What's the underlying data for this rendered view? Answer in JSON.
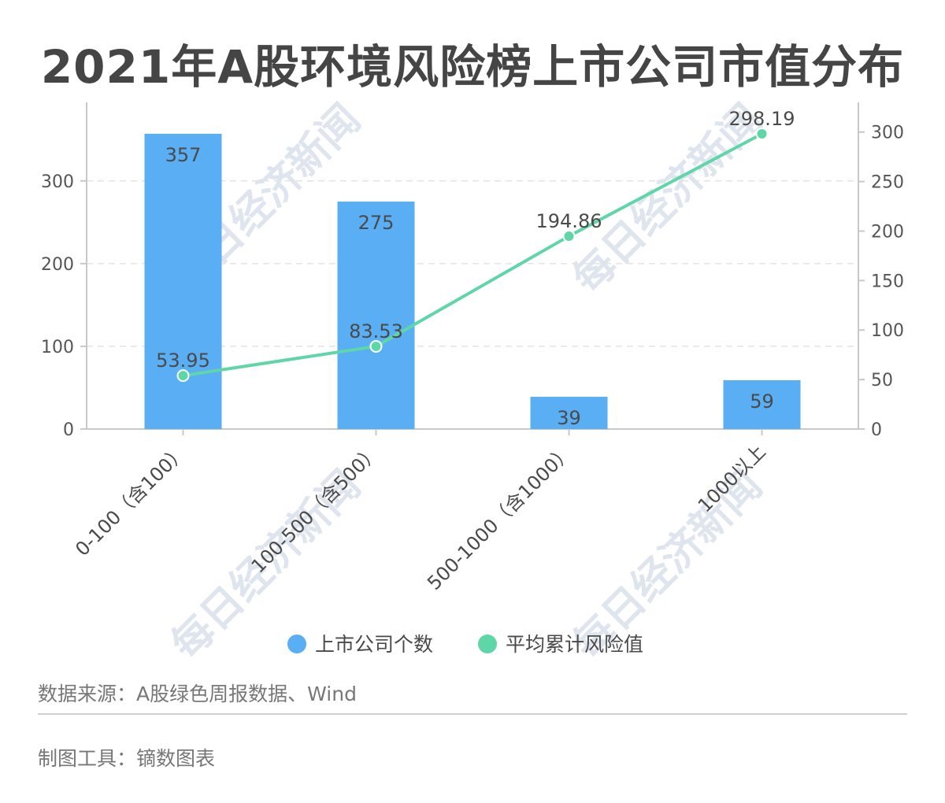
{
  "chart_data": {
    "type": "bar",
    "title": "2021年A股环境风险榜上市公司市值分布",
    "categories": [
      "0-100（含100）",
      "100-500（含500）",
      "500-1000（含1000）",
      "1000以上"
    ],
    "series": [
      {
        "name": "上市公司个数",
        "type": "bar",
        "axis": "left",
        "color": "#5aaef3",
        "values": [
          357,
          275,
          39,
          59
        ],
        "labels": [
          "357",
          "275",
          "39",
          "59"
        ]
      },
      {
        "name": "平均累计风险值",
        "type": "line",
        "axis": "right",
        "color": "#5fd6a8",
        "values": [
          53.95,
          83.53,
          194.86,
          298.19
        ],
        "labels": [
          "53.95",
          "83.53",
          "194.86",
          "298.19"
        ]
      }
    ],
    "y_left": {
      "ticks": [
        0,
        100,
        200,
        300
      ],
      "range": [
        0,
        395
      ]
    },
    "y_right": {
      "ticks": [
        0,
        50,
        100,
        150,
        200,
        250,
        300
      ],
      "range": [
        0,
        330
      ]
    },
    "grid": true,
    "legend_position": "bottom"
  },
  "watermark": "每日经济新闻",
  "footer": {
    "source": "数据来源：A股绿色周报数据、Wind",
    "tool": "制图工具：镝数图表"
  }
}
